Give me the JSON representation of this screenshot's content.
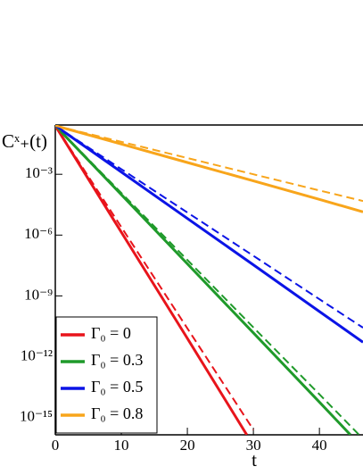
{
  "chart_data": {
    "type": "line",
    "xlabel": "t",
    "ylabel": "Cˣ₊(t)",
    "xlim": [
      0,
      46.6
    ],
    "xticks": [
      0,
      10,
      20,
      30,
      40
    ],
    "ylim": [
      1.4e-16,
      0.27
    ],
    "log_y": true,
    "yticks": [
      {
        "value": 0.001,
        "label": "10⁻³"
      },
      {
        "value": 1e-06,
        "label": "10⁻⁶"
      },
      {
        "value": 1e-09,
        "label": "10⁻⁹"
      },
      {
        "value": 1e-12,
        "label": "10⁻¹²"
      },
      {
        "value": 1e-15,
        "label": "10⁻¹⁵"
      }
    ],
    "legend": "lower left",
    "series": [
      {
        "name": "Γ₀ = 0",
        "color": "#e8141b",
        "style": "solid",
        "x": [
          0,
          10,
          20,
          29
        ],
        "values": [
          0.25,
          1.4e-06,
          8e-12,
          1.4e-16
        ]
      },
      {
        "name": "Γ₀ = 0.3",
        "color": "#1f9a2a",
        "style": "solid",
        "x": [
          0,
          10,
          20,
          30,
          40,
          44.7
        ],
        "values": [
          0.25,
          0.0001,
          3.8e-08,
          1.5e-11,
          5.8e-15,
          1.4e-16
        ]
      },
      {
        "name": "Γ₀ = 0.5",
        "color": "#0b14e6",
        "style": "solid",
        "x": [
          0,
          10,
          20,
          30,
          40,
          46.6
        ],
        "values": [
          0.25,
          0.0013,
          6.6e-06,
          3.4e-08,
          1.7e-10,
          5.2e-12
        ]
      },
      {
        "name": "Γ₀ = 0.8",
        "color": "#f8a51b",
        "style": "solid",
        "x": [
          0,
          10,
          20,
          30,
          40,
          46.6
        ],
        "values": [
          0.25,
          0.031,
          0.0038,
          0.00047,
          5.8e-05,
          1.4e-05
        ]
      },
      {
        "color": "#e8141b",
        "style": "dashed",
        "x": [
          0,
          10,
          20,
          30
        ],
        "values": [
          0.25,
          2.5e-06,
          2.5e-11,
          2.5e-16
        ]
      },
      {
        "color": "#1f9a2a",
        "style": "dashed",
        "x": [
          0,
          10,
          20,
          30,
          40,
          46
        ],
        "values": [
          0.25,
          0.00012,
          5.9e-08,
          2.8e-11,
          1.4e-14,
          1.4e-16
        ]
      },
      {
        "color": "#0b14e6",
        "style": "dashed",
        "x": [
          0,
          10,
          20,
          30,
          40,
          46.6
        ],
        "values": [
          0.25,
          0.0018,
          1.3e-05,
          9.5e-08,
          6.9e-10,
          2.7e-11
        ]
      },
      {
        "color": "#f8a51b",
        "style": "dashed",
        "x": [
          0,
          10,
          20,
          30,
          40,
          46.6
        ],
        "values": [
          0.25,
          0.04,
          0.0063,
          0.001,
          0.00016,
          4.8e-05
        ]
      }
    ]
  }
}
